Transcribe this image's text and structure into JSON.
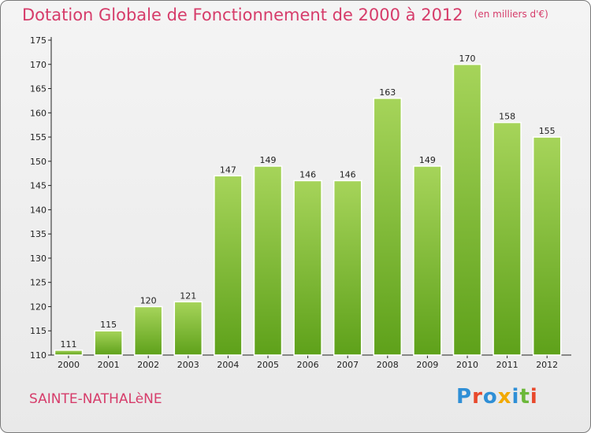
{
  "title": "Dotation Globale de Fonctionnement de 2000 à 2012",
  "subtitle": "(en milliers d'€)",
  "commune": "SAINTE-NATHALèNE",
  "logo": {
    "text": "Proxiti",
    "colors": [
      "#2f8fd6",
      "#e8492c",
      "#2f8fd6",
      "#f2a900",
      "#2f8fd6",
      "#6cb83a",
      "#e8492c"
    ]
  },
  "colors": {
    "bar_light": "#a6d45a",
    "bar_dark": "#5ea11a",
    "title": "#d63c6a"
  },
  "chart_data": {
    "type": "bar",
    "title": "Dotation Globale de Fonctionnement de 2000 à 2012",
    "ylabel": "(en milliers d'€)",
    "xlabel": "",
    "categories": [
      "2000",
      "2001",
      "2002",
      "2003",
      "2004",
      "2005",
      "2006",
      "2007",
      "2008",
      "2009",
      "2010",
      "2011",
      "2012"
    ],
    "values": [
      111,
      115,
      120,
      121,
      147,
      149,
      146,
      146,
      163,
      149,
      170,
      158,
      155
    ],
    "ylim": [
      110,
      175
    ],
    "yticks": [
      110,
      115,
      120,
      125,
      130,
      135,
      140,
      145,
      150,
      155,
      160,
      165,
      170,
      175
    ],
    "grid": false
  }
}
